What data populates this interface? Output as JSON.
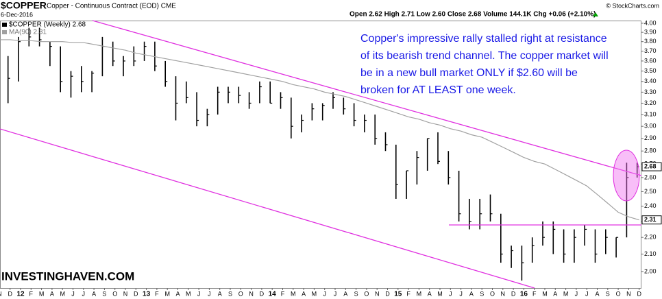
{
  "chart_data": {
    "type": "ohlc",
    "title": "$COPPER",
    "subtitle": "Copper - Continuous Contract (EOD) CME",
    "date": "6-Dec-2016",
    "quote": "Open 2.62  High 2.71  Low 2.60  Close 2.68  Volume 144.1K  Chg +0.06 (+2.10%)",
    "copyright": "© StockCharts.com",
    "watermark": "INVESTINGHAVEN.COM",
    "annotation": [
      "Copper's impressive rally stalled right at resistance",
      "of its bearish trend channel. The copper market will",
      "be in a new bull market ONLY if $2.60 will be",
      "broken for AT LEAST one week."
    ],
    "log_scale": true,
    "categories": [
      "N",
      "D",
      "12",
      "F",
      "M",
      "A",
      "M",
      "J",
      "J",
      "A",
      "S",
      "O",
      "N",
      "D",
      "13",
      "F",
      "M",
      "A",
      "M",
      "J",
      "J",
      "A",
      "S",
      "O",
      "N",
      "D",
      "14",
      "F",
      "M",
      "A",
      "M",
      "J",
      "J",
      "A",
      "S",
      "O",
      "N",
      "D",
      "15",
      "F",
      "M",
      "A",
      "M",
      "J",
      "J",
      "A",
      "S",
      "O",
      "N",
      "D",
      "16",
      "F",
      "M",
      "A",
      "M",
      "J",
      "J",
      "A",
      "S",
      "O",
      "N",
      "D"
    ],
    "series": [
      {
        "name": "$COPPER (Weekly) 2.68",
        "color": "#000000",
        "high": [
          3.75,
          3.65,
          3.85,
          3.95,
          3.95,
          3.8,
          3.75,
          3.5,
          3.55,
          3.5,
          3.85,
          3.8,
          3.65,
          3.75,
          3.8,
          3.8,
          3.6,
          3.45,
          3.4,
          3.3,
          3.15,
          3.35,
          3.35,
          3.35,
          3.3,
          3.4,
          3.4,
          3.3,
          3.25,
          3.1,
          3.2,
          3.2,
          3.3,
          3.25,
          3.2,
          3.1,
          3.1,
          2.95,
          2.85,
          2.65,
          2.8,
          2.9,
          2.95,
          2.8,
          2.65,
          2.45,
          2.45,
          2.48,
          2.35,
          2.15,
          2.15,
          2.2,
          2.3,
          2.3,
          2.25,
          2.25,
          2.28,
          2.25,
          2.25,
          2.2,
          2.71,
          2.71
        ],
        "low": [
          3.3,
          3.2,
          3.4,
          3.75,
          3.75,
          3.55,
          3.3,
          3.25,
          3.3,
          3.3,
          3.45,
          3.55,
          3.45,
          3.55,
          3.6,
          3.5,
          3.35,
          3.05,
          3.2,
          3.0,
          3.0,
          3.1,
          3.2,
          3.2,
          3.15,
          3.2,
          3.2,
          3.15,
          2.9,
          2.95,
          3.05,
          3.05,
          3.15,
          3.1,
          3.0,
          2.95,
          2.85,
          2.8,
          2.45,
          2.45,
          2.55,
          2.65,
          2.7,
          2.55,
          2.3,
          2.25,
          2.25,
          2.3,
          2.05,
          2.02,
          1.95,
          2.05,
          2.15,
          2.1,
          2.05,
          2.05,
          2.15,
          2.05,
          2.1,
          2.08,
          2.2,
          2.6
        ],
        "close": [
          3.45,
          3.43,
          3.8,
          3.85,
          3.82,
          3.75,
          3.4,
          3.45,
          3.4,
          3.48,
          3.75,
          3.6,
          3.6,
          3.6,
          3.75,
          3.55,
          3.4,
          3.2,
          3.25,
          3.05,
          3.1,
          3.3,
          3.3,
          3.27,
          3.2,
          3.35,
          3.2,
          3.25,
          3.0,
          3.05,
          3.15,
          3.18,
          3.25,
          3.15,
          3.05,
          3.05,
          2.9,
          2.85,
          2.55,
          2.65,
          2.75,
          2.9,
          2.72,
          2.6,
          2.35,
          2.3,
          2.35,
          2.35,
          2.1,
          2.12,
          2.05,
          2.15,
          2.2,
          2.25,
          2.1,
          2.2,
          2.25,
          2.1,
          2.2,
          2.2,
          2.6,
          2.68
        ]
      },
      {
        "name": "MA(90) 2.31",
        "color": "#a0a0a0",
        "values": [
          3.82,
          3.82,
          3.81,
          3.81,
          3.8,
          3.8,
          3.8,
          3.79,
          3.79,
          3.77,
          3.75,
          3.73,
          3.71,
          3.68,
          3.66,
          3.64,
          3.62,
          3.6,
          3.58,
          3.56,
          3.54,
          3.52,
          3.5,
          3.48,
          3.46,
          3.44,
          3.42,
          3.4,
          3.37,
          3.35,
          3.33,
          3.3,
          3.28,
          3.26,
          3.23,
          3.2,
          3.17,
          3.14,
          3.11,
          3.08,
          3.06,
          3.03,
          3.01,
          2.98,
          2.96,
          2.93,
          2.91,
          2.87,
          2.83,
          2.79,
          2.75,
          2.72,
          2.7,
          2.66,
          2.62,
          2.58,
          2.54,
          2.48,
          2.42,
          2.36,
          2.33,
          2.31
        ]
      }
    ],
    "last_labels": [
      {
        "value": 2.68,
        "label": "2.68"
      },
      {
        "value": 2.31,
        "label": "2.31"
      }
    ],
    "ylim": [
      1.91,
      4.03
    ],
    "yticks": [
      {
        "value": 2,
        "label": "2.00"
      },
      {
        "value": 2.1,
        "label": "2.10"
      },
      {
        "value": 2.2,
        "label": "2.20"
      },
      {
        "value": 2.3,
        "label": "2.30"
      },
      {
        "value": 2.4,
        "label": "2.40"
      },
      {
        "value": 2.5,
        "label": "2.50"
      },
      {
        "value": 2.6,
        "label": "2.60"
      },
      {
        "value": 2.7,
        "label": "2.70"
      },
      {
        "value": 2.8,
        "label": "2.80"
      },
      {
        "value": 2.9,
        "label": "2.90"
      },
      {
        "value": 3,
        "label": "3.00"
      },
      {
        "value": 3.1,
        "label": "3.10"
      },
      {
        "value": 3.2,
        "label": "3.20"
      },
      {
        "value": 3.3,
        "label": "3.30"
      },
      {
        "value": 3.4,
        "label": "3.40"
      },
      {
        "value": 3.5,
        "label": "3.50"
      },
      {
        "value": 3.6,
        "label": "3.60"
      },
      {
        "value": 3.7,
        "label": "3.70"
      },
      {
        "value": 3.8,
        "label": "3.80"
      },
      {
        "value": 3.9,
        "label": "3.90"
      },
      {
        "value": 4,
        "label": "4.00"
      }
    ]
  }
}
